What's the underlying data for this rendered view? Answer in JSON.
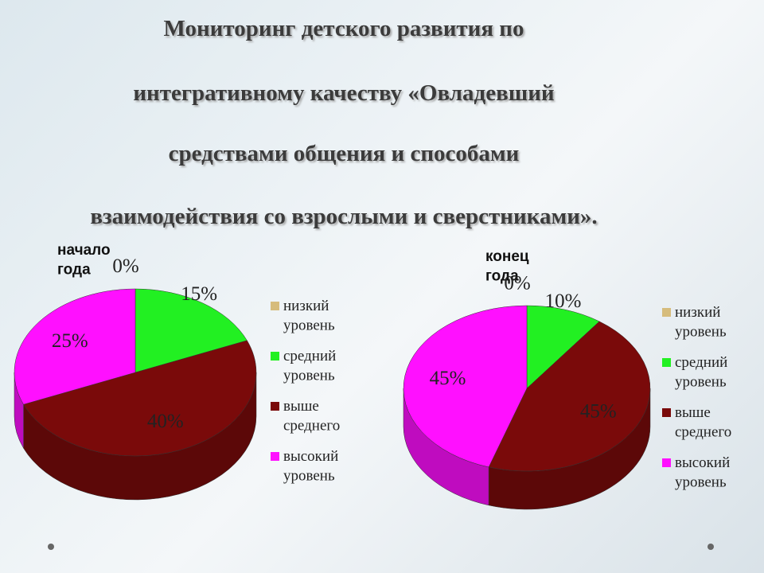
{
  "title": [
    "Мониторинг детского развития по",
    "интегративному качеству «Овладевший",
    "средствами общения и способами",
    "взаимодействия со взрослыми и сверстниками»."
  ],
  "chart_data": [
    {
      "type": "pie",
      "label": "начало года",
      "categories": [
        "низкий уровень",
        "средний уровень",
        "выше среднего",
        "высокий уровень"
      ],
      "values": [
        0,
        15,
        40,
        25
      ],
      "value_labels": [
        "0%",
        "15%",
        "40%",
        "25%"
      ],
      "colors": [
        "#d6bc7c",
        "#22f022",
        "#7a0a0a",
        "#ff10ff"
      ]
    },
    {
      "type": "pie",
      "label": "конец года",
      "categories": [
        "низкий уровень",
        "средний уровень",
        "выше среднего",
        "высокий уровень"
      ],
      "values": [
        0,
        10,
        45,
        45
      ],
      "value_labels": [
        "0%",
        "10%",
        "45%",
        "45%"
      ],
      "colors": [
        "#d6bc7c",
        "#22f022",
        "#7a0a0a",
        "#ff10ff"
      ]
    }
  ]
}
